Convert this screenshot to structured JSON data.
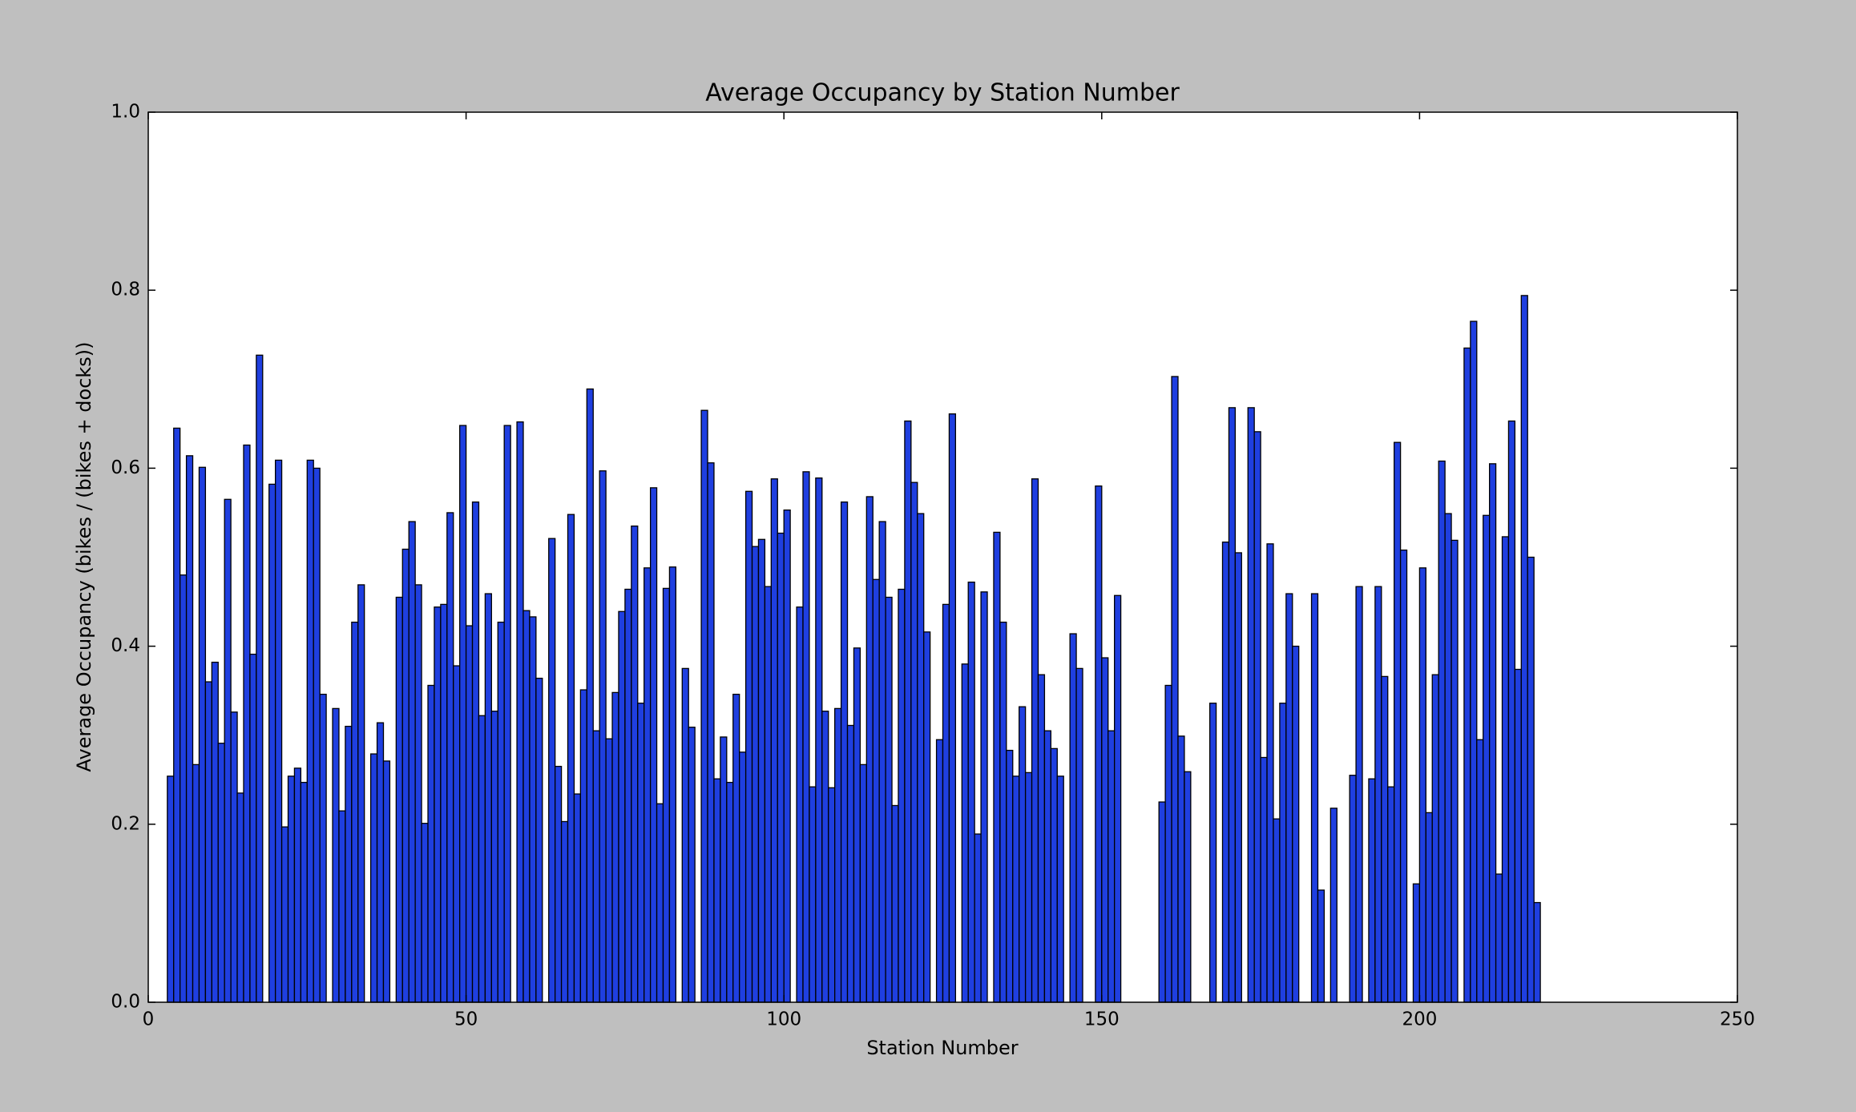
{
  "chart_data": {
    "type": "bar",
    "title": "Average Occupancy by Station Number",
    "xlabel": "Station Number",
    "ylabel": "Average Occupancy (bikes / (bikes + docks))",
    "color": "#1f3fe0",
    "edgecolor": "#000000",
    "x": [
      3,
      4,
      5,
      6,
      7,
      8,
      9,
      10,
      11,
      12,
      13,
      14,
      15,
      16,
      17,
      19,
      20,
      21,
      22,
      23,
      24,
      25,
      26,
      27,
      29,
      30,
      31,
      32,
      33,
      35,
      36,
      37,
      39,
      40,
      41,
      42,
      43,
      44,
      45,
      46,
      47,
      48,
      49,
      50,
      51,
      52,
      53,
      54,
      55,
      56,
      58,
      59,
      60,
      61,
      63,
      64,
      65,
      66,
      67,
      68,
      69,
      70,
      71,
      72,
      73,
      74,
      75,
      76,
      77,
      78,
      79,
      80,
      81,
      82,
      84,
      85,
      87,
      88,
      89,
      90,
      91,
      92,
      93,
      94,
      95,
      96,
      97,
      98,
      99,
      100,
      102,
      103,
      104,
      105,
      106,
      107,
      108,
      109,
      110,
      111,
      112,
      113,
      114,
      115,
      116,
      117,
      118,
      119,
      120,
      121,
      122,
      124,
      125,
      126,
      128,
      129,
      130,
      131,
      133,
      134,
      135,
      136,
      137,
      138,
      139,
      140,
      141,
      142,
      143,
      145,
      146,
      149,
      150,
      151,
      152,
      159,
      160,
      161,
      162,
      163,
      167,
      169,
      170,
      171,
      173,
      174,
      175,
      176,
      177,
      178,
      179,
      180,
      183,
      184,
      186,
      189,
      190,
      192,
      193,
      194,
      195,
      196,
      197,
      199,
      200,
      201,
      202,
      203,
      204,
      205,
      207,
      208,
      209,
      210,
      211,
      212,
      213,
      214,
      215,
      216,
      217,
      218
    ],
    "values": [
      0.254,
      0.645,
      0.48,
      0.614,
      0.267,
      0.601,
      0.36,
      0.382,
      0.291,
      0.565,
      0.326,
      0.235,
      0.626,
      0.391,
      0.727,
      0.582,
      0.609,
      0.197,
      0.254,
      0.263,
      0.247,
      0.609,
      0.6,
      0.346,
      0.33,
      0.215,
      0.31,
      0.427,
      0.469,
      0.279,
      0.314,
      0.271,
      0.455,
      0.509,
      0.54,
      0.469,
      0.201,
      0.356,
      0.444,
      0.447,
      0.55,
      0.378,
      0.648,
      0.423,
      0.562,
      0.322,
      0.459,
      0.327,
      0.427,
      0.648,
      0.652,
      0.44,
      0.433,
      0.364,
      0.521,
      0.265,
      0.203,
      0.548,
      0.234,
      0.351,
      0.689,
      0.305,
      0.597,
      0.296,
      0.348,
      0.439,
      0.464,
      0.535,
      0.336,
      0.488,
      0.578,
      0.223,
      0.465,
      0.489,
      0.375,
      0.309,
      0.665,
      0.606,
      0.251,
      0.298,
      0.247,
      0.346,
      0.281,
      0.574,
      0.512,
      0.52,
      0.467,
      0.588,
      0.527,
      0.553,
      0.444,
      0.596,
      0.242,
      0.589,
      0.327,
      0.241,
      0.33,
      0.562,
      0.311,
      0.398,
      0.267,
      0.568,
      0.475,
      0.54,
      0.455,
      0.221,
      0.464,
      0.653,
      0.584,
      0.549,
      0.416,
      0.295,
      0.447,
      0.661,
      0.38,
      0.472,
      0.189,
      0.461,
      0.528,
      0.427,
      0.283,
      0.254,
      0.332,
      0.258,
      0.588,
      0.368,
      0.305,
      0.285,
      0.254,
      0.414,
      0.375,
      0.58,
      0.387,
      0.305,
      0.457,
      0.225,
      0.356,
      0.703,
      0.299,
      0.259,
      0.336,
      0.517,
      0.668,
      0.505,
      0.668,
      0.641,
      0.275,
      0.515,
      0.206,
      0.336,
      0.459,
      0.4,
      0.459,
      0.126,
      0.218,
      0.255,
      0.467,
      0.251,
      0.467,
      0.366,
      0.242,
      0.629,
      0.508,
      0.133,
      0.488,
      0.213,
      0.368,
      0.608,
      0.549,
      0.519,
      0.735,
      0.765,
      0.295,
      0.547,
      0.605,
      0.144,
      0.523,
      0.653,
      0.374,
      0.794,
      0.5,
      0.112
    ],
    "xlim": [
      0,
      250
    ],
    "xticks": [
      0,
      50,
      100,
      150,
      200,
      250
    ],
    "ylim": [
      0,
      1
    ],
    "yticks": [
      {
        "value": 0,
        "label": "0.0"
      },
      0.2,
      0.4,
      0.6,
      0.8,
      {
        "value": 1,
        "label": "1.0"
      }
    ],
    "grid": false
  }
}
